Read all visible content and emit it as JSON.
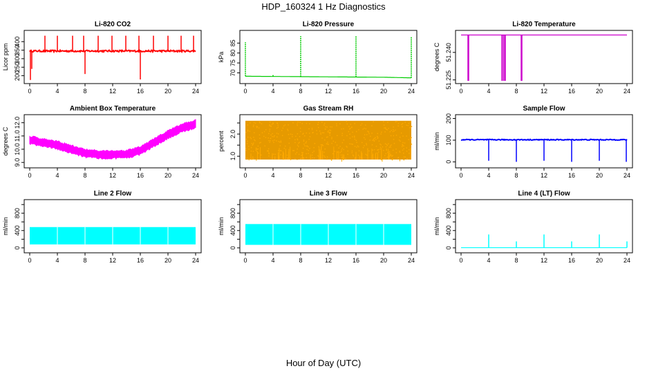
{
  "figure": {
    "title": "HDP_160324  1 Hz Diagnostics",
    "xlabel": "Hour of Day (UTC)"
  },
  "chart_data": [
    {
      "type": "line",
      "title": "Li-820 CO2",
      "ylabel": "Licor ppm",
      "color": "#ff0000",
      "xlim": [
        0,
        24
      ],
      "ylim": [
        170,
        450
      ],
      "xticks": [
        0,
        4,
        8,
        12,
        16,
        20,
        24
      ],
      "yticks": [
        200,
        250,
        300,
        350,
        400
      ],
      "baseline": 345,
      "noise": 5,
      "spikes": [
        {
          "x": 0.1,
          "y": 175
        },
        {
          "x": 0.3,
          "y": 240
        },
        {
          "x": 2.2,
          "y": 435
        },
        {
          "x": 4.0,
          "y": 435
        },
        {
          "x": 6.2,
          "y": 435
        },
        {
          "x": 7.8,
          "y": 435
        },
        {
          "x": 8.0,
          "y": 210
        },
        {
          "x": 9.9,
          "y": 435
        },
        {
          "x": 11.9,
          "y": 435
        },
        {
          "x": 13.9,
          "y": 435
        },
        {
          "x": 15.8,
          "y": 435
        },
        {
          "x": 16.0,
          "y": 178
        },
        {
          "x": 17.9,
          "y": 435
        },
        {
          "x": 20.0,
          "y": 435
        },
        {
          "x": 21.9,
          "y": 435
        },
        {
          "x": 23.7,
          "y": 435
        }
      ]
    },
    {
      "type": "line",
      "title": "Li-820 Pressure",
      "ylabel": "kPa",
      "color": "#00cc00",
      "xlim": [
        0,
        24
      ],
      "ylim": [
        66,
        90
      ],
      "xticks": [
        0,
        4,
        8,
        12,
        16,
        20,
        24
      ],
      "yticks": [
        70,
        75,
        80,
        85
      ],
      "series": [
        {
          "x": [
            0,
            4,
            8,
            12,
            16,
            20,
            24
          ],
          "values": [
            68.3,
            68.2,
            68.1,
            68.0,
            67.9,
            67.8,
            67.5
          ]
        }
      ],
      "spikes": [
        {
          "x": 0.0,
          "y": 85.5
        },
        {
          "x": 4.0,
          "y": 69
        },
        {
          "x": 8.0,
          "y": 88.5
        },
        {
          "x": 16.0,
          "y": 88.5
        },
        {
          "x": 24.0,
          "y": 88
        }
      ]
    },
    {
      "type": "line",
      "title": "Li-820 Temperature",
      "ylabel": "degrees C",
      "color": "#cc00cc",
      "xlim": [
        0,
        24
      ],
      "ylim": [
        51.2245,
        51.2505
      ],
      "xticks": [
        0,
        4,
        8,
        12,
        16,
        20,
        24
      ],
      "yticks": [
        51.225,
        51.24
      ],
      "ytick_labels": [
        "51.225",
        "51.240"
      ],
      "baseline": 51.2495,
      "dips": [
        {
          "from": 1.0,
          "to": 1.1,
          "y": 51.2245
        },
        {
          "from": 5.9,
          "to": 6.1,
          "y": 51.2245
        },
        {
          "from": 6.3,
          "to": 6.4,
          "y": 51.2245
        },
        {
          "from": 8.7,
          "to": 8.8,
          "y": 51.2245
        }
      ]
    },
    {
      "type": "line",
      "title": "Ambient Box Temperature",
      "ylabel": "degrees C",
      "color": "#ff00ff",
      "xlim": [
        0,
        24
      ],
      "ylim": [
        8.8,
        12.4
      ],
      "xticks": [
        0,
        4,
        8,
        12,
        16,
        20,
        24
      ],
      "yticks": [
        9.0,
        10.0,
        11.0,
        12.0
      ],
      "ytick_labels": [
        "9.0",
        "10.0",
        "11.0",
        "12.0"
      ],
      "series": [
        {
          "x": [
            0,
            2,
            4,
            6,
            8,
            10,
            12,
            14,
            16,
            18,
            20,
            22,
            24
          ],
          "values": [
            10.7,
            10.5,
            10.3,
            10.0,
            9.7,
            9.6,
            9.6,
            9.6,
            9.9,
            10.5,
            11.1,
            11.6,
            11.9
          ]
        }
      ],
      "band": 0.35
    },
    {
      "type": "line",
      "title": "Gas Stream RH",
      "ylabel": "percent",
      "color": "#ffaa00",
      "xlim": [
        0,
        24
      ],
      "ylim": [
        0.6,
        2.75
      ],
      "xticks": [
        0,
        4,
        8,
        12,
        16,
        20,
        24
      ],
      "yticks": [
        1.0,
        1.5,
        2.0,
        2.5
      ],
      "ytick_labels": [
        "1.0",
        "",
        "2.0",
        ""
      ],
      "band_top": 2.6,
      "band_bottom": 0.85
    },
    {
      "type": "line",
      "title": "Sample Flow",
      "ylabel": "ml/min",
      "color": "#0000ff",
      "xlim": [
        0,
        24
      ],
      "ylim": [
        -15,
        205
      ],
      "xticks": [
        0,
        4,
        8,
        12,
        16,
        20,
        24
      ],
      "yticks": [
        0,
        100,
        200
      ],
      "baseline": 102,
      "dips": [
        {
          "x": 4.0,
          "y": 5
        },
        {
          "x": 8.0,
          "y": 0
        },
        {
          "x": 12.0,
          "y": 5
        },
        {
          "x": 16.0,
          "y": 0
        },
        {
          "x": 20.0,
          "y": 5
        },
        {
          "x": 23.9,
          "y": 0
        }
      ]
    },
    {
      "type": "line",
      "title": "Line 2 Flow",
      "ylabel": "ml/min",
      "color": "#00ffff",
      "xlim": [
        0,
        24
      ],
      "ylim": [
        -50,
        1050
      ],
      "xticks": [
        0,
        4,
        8,
        12,
        16,
        20,
        24
      ],
      "yticks": [
        0,
        200,
        400,
        600,
        800,
        1000
      ],
      "ytick_labels": [
        "0",
        "",
        "400",
        "",
        "800",
        ""
      ],
      "band_top": 480,
      "band_bottom": 80,
      "gaps": [
        4.0,
        8.0,
        12.0,
        16.0,
        20.0
      ]
    },
    {
      "type": "line",
      "title": "Line 3 Flow",
      "ylabel": "ml/min",
      "color": "#00ffff",
      "xlim": [
        0,
        24
      ],
      "ylim": [
        -50,
        1050
      ],
      "xticks": [
        0,
        4,
        8,
        12,
        16,
        20,
        24
      ],
      "yticks": [
        0,
        200,
        400,
        600,
        800,
        1000
      ],
      "ytick_labels": [
        "0",
        "",
        "400",
        "",
        "800",
        ""
      ],
      "band_top": 550,
      "band_bottom": 70,
      "gaps": [
        4.0,
        8.0,
        12.0,
        16.0,
        20.0
      ]
    },
    {
      "type": "line",
      "title": "Line 4 (LT) Flow",
      "ylabel": "ml/min",
      "color": "#00ffff",
      "xlim": [
        0,
        24
      ],
      "ylim": [
        -50,
        1050
      ],
      "xticks": [
        0,
        4,
        8,
        12,
        16,
        20,
        24
      ],
      "yticks": [
        0,
        200,
        400,
        600,
        800,
        1000
      ],
      "ytick_labels": [
        "0",
        "",
        "400",
        "",
        "800",
        ""
      ],
      "baseline": 5,
      "spikes": [
        {
          "x": 4.0,
          "y": 310
        },
        {
          "x": 8.0,
          "y": 150
        },
        {
          "x": 12.0,
          "y": 310
        },
        {
          "x": 16.0,
          "y": 150
        },
        {
          "x": 20.0,
          "y": 310
        },
        {
          "x": 24.0,
          "y": 150
        }
      ]
    }
  ]
}
